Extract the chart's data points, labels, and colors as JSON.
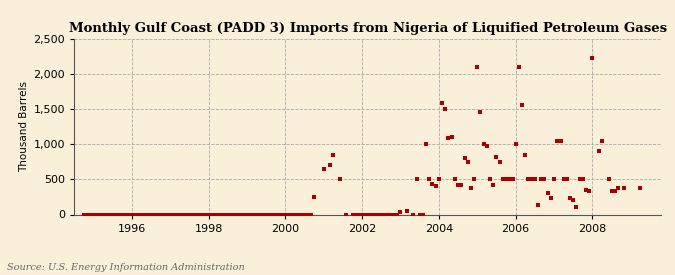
{
  "title": "Monthly Gulf Coast (PADD 3) Imports from Nigeria of Liquified Petroleum Gases",
  "ylabel": "Thousand Barrels",
  "source": "Source: U.S. Energy Information Administration",
  "background_color": "#faefd9",
  "plot_background_color": "#faefd9",
  "marker_color": "#aa0000",
  "marker_size": 3.5,
  "ylim": [
    0,
    2500
  ],
  "yticks": [
    0,
    500,
    1000,
    1500,
    2000,
    2500
  ],
  "ytick_labels": [
    "0",
    "500",
    "1,000",
    "1,500",
    "2,000",
    "2,500"
  ],
  "xlim_start": 1994.5,
  "xlim_end": 2009.8,
  "xticks": [
    1996,
    1998,
    2000,
    2002,
    2004,
    2006,
    2008
  ],
  "data_points": [
    [
      1994.75,
      0
    ],
    [
      1994.83,
      0
    ],
    [
      1994.92,
      0
    ],
    [
      1995.0,
      0
    ],
    [
      1995.08,
      0
    ],
    [
      1995.17,
      0
    ],
    [
      1995.25,
      0
    ],
    [
      1995.33,
      0
    ],
    [
      1995.42,
      0
    ],
    [
      1995.5,
      0
    ],
    [
      1995.58,
      0
    ],
    [
      1995.67,
      0
    ],
    [
      1995.75,
      0
    ],
    [
      1995.83,
      0
    ],
    [
      1995.92,
      0
    ],
    [
      1996.0,
      0
    ],
    [
      1996.08,
      0
    ],
    [
      1996.17,
      0
    ],
    [
      1996.25,
      0
    ],
    [
      1996.33,
      0
    ],
    [
      1996.42,
      0
    ],
    [
      1996.5,
      0
    ],
    [
      1996.58,
      0
    ],
    [
      1996.67,
      0
    ],
    [
      1996.75,
      0
    ],
    [
      1996.83,
      0
    ],
    [
      1996.92,
      0
    ],
    [
      1997.0,
      0
    ],
    [
      1997.08,
      0
    ],
    [
      1997.17,
      0
    ],
    [
      1997.25,
      0
    ],
    [
      1997.33,
      0
    ],
    [
      1997.42,
      0
    ],
    [
      1997.5,
      0
    ],
    [
      1997.58,
      0
    ],
    [
      1997.67,
      0
    ],
    [
      1997.75,
      0
    ],
    [
      1997.83,
      0
    ],
    [
      1997.92,
      0
    ],
    [
      1998.0,
      0
    ],
    [
      1998.08,
      0
    ],
    [
      1998.17,
      0
    ],
    [
      1998.25,
      0
    ],
    [
      1998.33,
      0
    ],
    [
      1998.42,
      0
    ],
    [
      1998.5,
      0
    ],
    [
      1998.58,
      0
    ],
    [
      1998.67,
      0
    ],
    [
      1998.75,
      0
    ],
    [
      1998.83,
      0
    ],
    [
      1998.92,
      0
    ],
    [
      1999.0,
      0
    ],
    [
      1999.08,
      0
    ],
    [
      1999.17,
      0
    ],
    [
      1999.25,
      0
    ],
    [
      1999.33,
      0
    ],
    [
      1999.42,
      0
    ],
    [
      1999.5,
      0
    ],
    [
      1999.58,
      0
    ],
    [
      1999.67,
      0
    ],
    [
      1999.75,
      0
    ],
    [
      1999.83,
      0
    ],
    [
      1999.92,
      0
    ],
    [
      2000.0,
      0
    ],
    [
      2000.08,
      0
    ],
    [
      2000.17,
      0
    ],
    [
      2000.25,
      0
    ],
    [
      2000.33,
      0
    ],
    [
      2000.42,
      0
    ],
    [
      2000.5,
      0
    ],
    [
      2000.58,
      0
    ],
    [
      2000.67,
      0
    ],
    [
      2000.75,
      255
    ],
    [
      2001.0,
      640
    ],
    [
      2001.17,
      700
    ],
    [
      2001.25,
      850
    ],
    [
      2001.42,
      500
    ],
    [
      2001.58,
      0
    ],
    [
      2001.75,
      0
    ],
    [
      2001.83,
      0
    ],
    [
      2001.92,
      0
    ],
    [
      2002.0,
      0
    ],
    [
      2002.08,
      0
    ],
    [
      2002.17,
      0
    ],
    [
      2002.25,
      0
    ],
    [
      2002.33,
      0
    ],
    [
      2002.42,
      0
    ],
    [
      2002.5,
      0
    ],
    [
      2002.58,
      0
    ],
    [
      2002.67,
      0
    ],
    [
      2002.75,
      0
    ],
    [
      2002.83,
      0
    ],
    [
      2002.92,
      0
    ],
    [
      2003.0,
      30
    ],
    [
      2003.17,
      50
    ],
    [
      2003.33,
      0
    ],
    [
      2003.42,
      500
    ],
    [
      2003.5,
      0
    ],
    [
      2003.58,
      0
    ],
    [
      2003.67,
      1000
    ],
    [
      2003.75,
      500
    ],
    [
      2003.83,
      430
    ],
    [
      2003.92,
      400
    ],
    [
      2004.0,
      500
    ],
    [
      2004.08,
      1580
    ],
    [
      2004.17,
      1500
    ],
    [
      2004.25,
      1080
    ],
    [
      2004.33,
      1100
    ],
    [
      2004.42,
      500
    ],
    [
      2004.5,
      420
    ],
    [
      2004.58,
      420
    ],
    [
      2004.67,
      800
    ],
    [
      2004.75,
      750
    ],
    [
      2004.83,
      380
    ],
    [
      2004.92,
      500
    ],
    [
      2005.0,
      2100
    ],
    [
      2005.08,
      1450
    ],
    [
      2005.17,
      1000
    ],
    [
      2005.25,
      980
    ],
    [
      2005.33,
      500
    ],
    [
      2005.42,
      420
    ],
    [
      2005.5,
      820
    ],
    [
      2005.58,
      750
    ],
    [
      2005.67,
      500
    ],
    [
      2005.75,
      500
    ],
    [
      2005.83,
      500
    ],
    [
      2005.92,
      500
    ],
    [
      2006.0,
      1000
    ],
    [
      2006.08,
      2100
    ],
    [
      2006.17,
      1560
    ],
    [
      2006.25,
      840
    ],
    [
      2006.33,
      500
    ],
    [
      2006.42,
      500
    ],
    [
      2006.5,
      500
    ],
    [
      2006.58,
      140
    ],
    [
      2006.67,
      500
    ],
    [
      2006.75,
      500
    ],
    [
      2006.83,
      300
    ],
    [
      2006.92,
      230
    ],
    [
      2007.0,
      500
    ],
    [
      2007.08,
      1050
    ],
    [
      2007.17,
      1050
    ],
    [
      2007.25,
      500
    ],
    [
      2007.33,
      500
    ],
    [
      2007.42,
      230
    ],
    [
      2007.5,
      210
    ],
    [
      2007.58,
      100
    ],
    [
      2007.67,
      500
    ],
    [
      2007.75,
      500
    ],
    [
      2007.83,
      350
    ],
    [
      2007.92,
      330
    ],
    [
      2008.0,
      2230
    ],
    [
      2008.17,
      900
    ],
    [
      2008.25,
      1050
    ],
    [
      2008.42,
      500
    ],
    [
      2008.5,
      340
    ],
    [
      2008.58,
      330
    ],
    [
      2008.67,
      380
    ],
    [
      2008.83,
      380
    ],
    [
      2009.25,
      370
    ]
  ]
}
